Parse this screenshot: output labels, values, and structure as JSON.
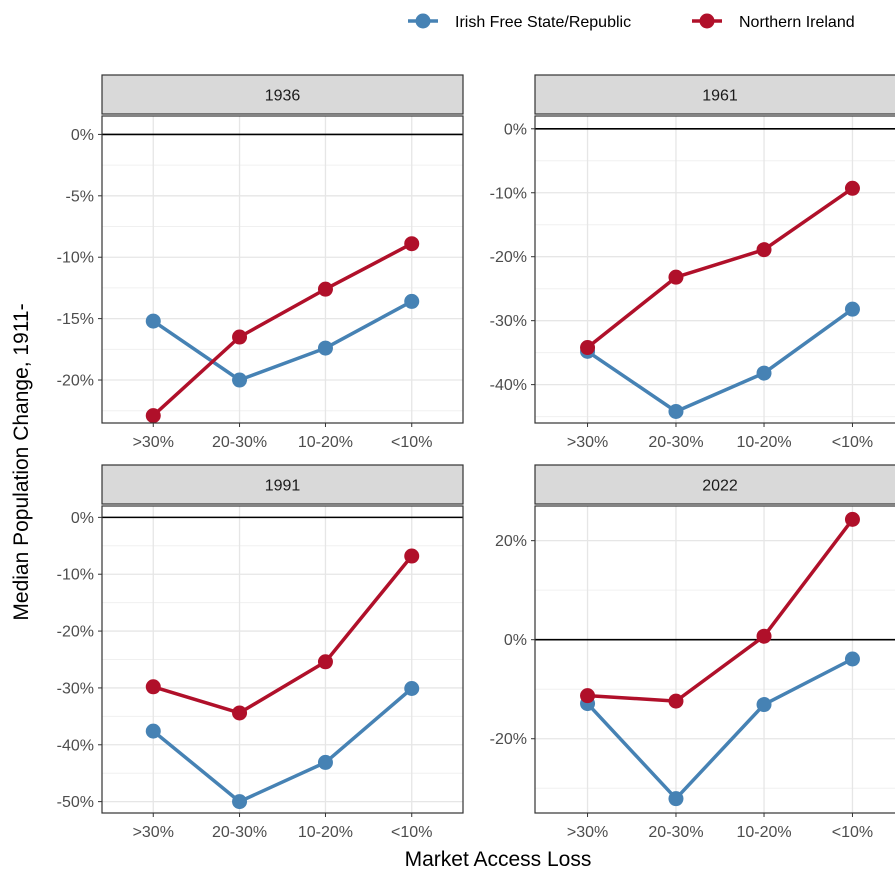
{
  "chart_data": {
    "type": "line",
    "xlabel": "Market Access Loss",
    "ylabel": "Median Population Change, 1911-",
    "legend_position": "top-right",
    "categories": [
      ">30%",
      "20-30%",
      "10-20%",
      "<10%"
    ],
    "series_names": [
      "Irish Free State/Republic",
      "Northern Ireland"
    ],
    "series_colors": [
      "#4682B4",
      "#B0102A"
    ],
    "panels": [
      {
        "title": "1936",
        "ylim": [
          -23.5,
          1.5
        ],
        "yticks": [
          0,
          -5,
          -10,
          -15,
          -20
        ],
        "ytick_labels": [
          "0%",
          "-5%",
          "-10%",
          "-15%",
          "-20%"
        ],
        "series": [
          {
            "name": "Irish Free State/Republic",
            "values": [
              -15.2,
              -20.0,
              -17.4,
              -13.6
            ]
          },
          {
            "name": "Northern Ireland",
            "values": [
              -22.9,
              -16.5,
              -12.6,
              -8.9
            ]
          }
        ]
      },
      {
        "title": "1961",
        "ylim": [
          -46,
          2
        ],
        "yticks": [
          0,
          -10,
          -20,
          -30,
          -40
        ],
        "ytick_labels": [
          "0%",
          "-10%",
          "-20%",
          "-30%",
          "-40%"
        ],
        "series": [
          {
            "name": "Irish Free State/Republic",
            "values": [
              -34.8,
              -44.2,
              -38.2,
              -28.2
            ]
          },
          {
            "name": "Northern Ireland",
            "values": [
              -34.2,
              -23.2,
              -18.9,
              -9.3
            ]
          }
        ]
      },
      {
        "title": "1991",
        "ylim": [
          -52,
          2
        ],
        "yticks": [
          0,
          -10,
          -20,
          -30,
          -40,
          -50
        ],
        "ytick_labels": [
          "0%",
          "-10%",
          "-20%",
          "-30%",
          "-40%",
          "-50%"
        ],
        "series": [
          {
            "name": "Irish Free State/Republic",
            "values": [
              -37.6,
              -50.0,
              -43.1,
              -30.1
            ]
          },
          {
            "name": "Northern Ireland",
            "values": [
              -29.8,
              -34.4,
              -25.4,
              -6.8
            ]
          }
        ]
      },
      {
        "title": "2022",
        "ylim": [
          -35,
          27
        ],
        "yticks": [
          20,
          0,
          -20
        ],
        "ytick_labels": [
          "20%",
          "0%",
          "-20%"
        ],
        "series": [
          {
            "name": "Irish Free State/Republic",
            "values": [
              -12.9,
              -32.1,
              -13.1,
              -3.9
            ]
          },
          {
            "name": "Northern Ireland",
            "values": [
              -11.3,
              -12.4,
              0.7,
              24.3
            ]
          }
        ]
      }
    ]
  }
}
